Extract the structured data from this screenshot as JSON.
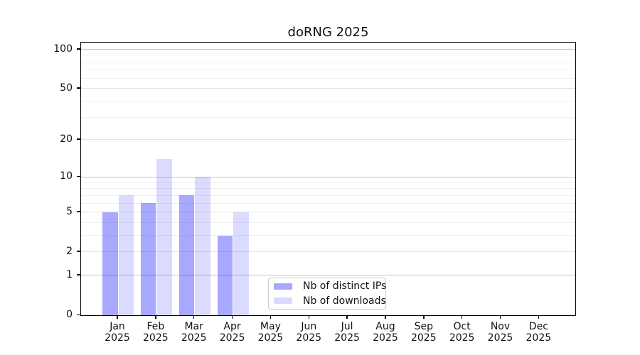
{
  "chart_data": {
    "type": "bar",
    "title": "doRNG 2025",
    "categories": [
      "Jan 2025",
      "Feb 2025",
      "Mar 2025",
      "Apr 2025",
      "May 2025",
      "Jun 2025",
      "Jul 2025",
      "Aug 2025",
      "Sep 2025",
      "Oct 2025",
      "Nov 2025",
      "Dec 2025"
    ],
    "months": [
      "Jan",
      "Feb",
      "Mar",
      "Apr",
      "May",
      "Jun",
      "Jul",
      "Aug",
      "Sep",
      "Oct",
      "Nov",
      "Dec"
    ],
    "year_label": "2025",
    "series": [
      {
        "name": "Nb of distinct IPs",
        "color": "rgba(0,0,255,0.34)",
        "values": [
          5,
          6,
          7,
          3,
          0,
          0,
          0,
          0,
          0,
          0,
          0,
          0
        ]
      },
      {
        "name": "Nb of downloads",
        "color": "rgba(0,0,255,0.14)",
        "values": [
          7,
          14,
          10,
          5,
          0,
          0,
          0,
          0,
          0,
          0,
          0,
          0
        ]
      }
    ],
    "y_axis": {
      "scale": "log1p",
      "tick_values": [
        0,
        1,
        2,
        5,
        10,
        20,
        50,
        100
      ],
      "major_gridlines": [
        1,
        10,
        100
      ],
      "mid_gridlines": [
        2,
        5,
        20,
        50
      ],
      "minor_gridlines": [
        3,
        4,
        6,
        7,
        8,
        9,
        30,
        40,
        60,
        70,
        80,
        90
      ],
      "ylim": [
        0,
        113
      ]
    },
    "grid": "horizontal",
    "legend_position": "lower center"
  },
  "colors": {
    "grid_major": "#c7c7c7",
    "grid_mid": "#e4e4e4",
    "grid_minor": "#f1f1f1",
    "axis": "#000000",
    "text": "#111111",
    "background": "#ffffff"
  }
}
